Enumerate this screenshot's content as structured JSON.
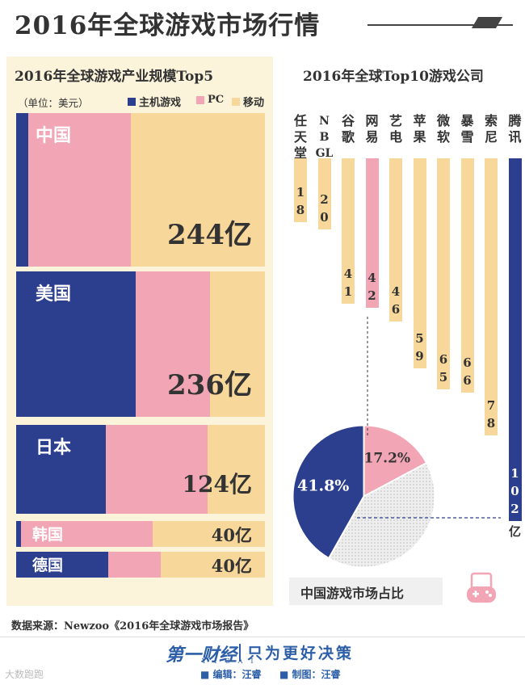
{
  "title": "2016年全球游戏市场行情",
  "left": {
    "title": "2016年全球游戏产业规模Top5",
    "unit": "（单位：美元）"
  },
  "right": {
    "title": "2016年全球Top10游戏公司",
    "unit_suffix": "亿"
  },
  "colors": {
    "console": "#2c3f8f",
    "pc": "#f2a5b5",
    "mobile": "#f8d89a",
    "panel": "#fbf3da",
    "brand": "#2c5fa8"
  },
  "pie_caption": "中国游戏市场占比",
  "source": "数据来源：Newzoo《2016年全球游戏市场报告》",
  "footer": {
    "brand": "第一财经",
    "brand_sub": "YICAI",
    "slogan": "只为更好决策",
    "editor": "■ 编辑：汪睿",
    "maker": "■ 制图：汪睿",
    "watermark": "大数跑跑"
  },
  "chart_data": [
    {
      "type": "bar",
      "title": "2016年全球游戏产业规模Top5",
      "unit": "（单位：美元）",
      "stacked": true,
      "legend": "top",
      "categories": [
        "中国",
        "美国",
        "日本",
        "韩国",
        "德国"
      ],
      "totals": [
        244,
        236,
        124,
        40,
        40
      ],
      "total_labels": [
        "244亿",
        "236亿",
        "124亿",
        "40亿",
        "40亿"
      ],
      "series": [
        {
          "name": "主机游戏",
          "color": "#2c3f8f",
          "shares": [
            0.05,
            0.48,
            0.36,
            0.0,
            0.37
          ]
        },
        {
          "name": "PC",
          "color": "#f2a5b5",
          "shares": [
            0.41,
            0.3,
            0.41,
            0.54,
            0.21
          ]
        },
        {
          "name": "移动",
          "color": "#f8d89a",
          "shares": [
            0.54,
            0.22,
            0.23,
            0.46,
            0.42
          ]
        }
      ]
    },
    {
      "type": "bar",
      "title": "2016年全球Top10游戏公司",
      "categories": [
        "任天堂",
        "NBGL",
        "谷歌",
        "网易",
        "艺电",
        "苹果",
        "微软",
        "暴雪",
        "索尼",
        "腾讯"
      ],
      "values": [
        18,
        20,
        41,
        42,
        46,
        59,
        65,
        66,
        78,
        102
      ],
      "unit": "亿",
      "highlight_colors": [
        "#f8d89a",
        "#f8d89a",
        "#f8d89a",
        "#f2a5b5",
        "#f8d89a",
        "#f8d89a",
        "#f8d89a",
        "#f8d89a",
        "#f8d89a",
        "#2c3f8f"
      ]
    },
    {
      "type": "pie",
      "title": "中国游戏市场占比",
      "slices": [
        {
          "label": "41.8%",
          "value": 41.8,
          "color": "#2c3f8f"
        },
        {
          "label": "17.2%",
          "value": 17.2,
          "color": "#f2a5b5"
        },
        {
          "label": "",
          "value": 41.0,
          "color": "#e6e6e6"
        }
      ]
    }
  ]
}
